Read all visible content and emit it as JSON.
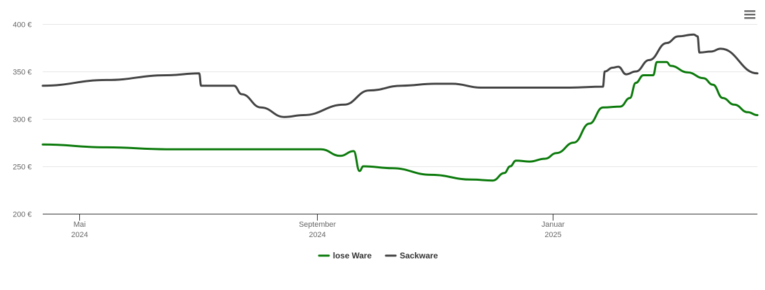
{
  "menu": {
    "icon": "hamburger-menu-icon"
  },
  "chart_data": {
    "type": "line",
    "currency_suffix": " €",
    "ylim": [
      200,
      400
    ],
    "yticks": [
      200,
      250,
      300,
      350,
      400
    ],
    "y_tick_labels": [
      "200 €",
      "250 €",
      "300 €",
      "350 €",
      "400 €"
    ],
    "xlim": [
      "2024-04-12",
      "2025-04-17"
    ],
    "x_ticks": [
      {
        "date": "2024-05-01",
        "month": "Mai",
        "year": "2024"
      },
      {
        "date": "2024-09-01",
        "month": "September",
        "year": "2024"
      },
      {
        "date": "2025-01-01",
        "month": "Januar",
        "year": "2025"
      }
    ],
    "grid": true,
    "legend_position": "bottom-center",
    "series": [
      {
        "name": "lose Ware",
        "color": "#0b7a0b",
        "points": [
          [
            "2024-04-12",
            273
          ],
          [
            "2024-05-15",
            270
          ],
          [
            "2024-06-15",
            268
          ],
          [
            "2024-07-15",
            268
          ],
          [
            "2024-08-15",
            268
          ],
          [
            "2024-09-03",
            268
          ],
          [
            "2024-09-13",
            261
          ],
          [
            "2024-09-20",
            266
          ],
          [
            "2024-09-23",
            245
          ],
          [
            "2024-09-25",
            250
          ],
          [
            "2024-10-10",
            248
          ],
          [
            "2024-10-30",
            241
          ],
          [
            "2024-11-20",
            236
          ],
          [
            "2024-12-01",
            235
          ],
          [
            "2024-12-07",
            243
          ],
          [
            "2024-12-10",
            250
          ],
          [
            "2024-12-13",
            256
          ],
          [
            "2024-12-20",
            255
          ],
          [
            "2024-12-28",
            258
          ],
          [
            "2025-01-03",
            264
          ],
          [
            "2025-01-12",
            275
          ],
          [
            "2025-01-20",
            295
          ],
          [
            "2025-01-27",
            312
          ],
          [
            "2025-02-05",
            313
          ],
          [
            "2025-02-10",
            322
          ],
          [
            "2025-02-13",
            338
          ],
          [
            "2025-02-17",
            346
          ],
          [
            "2025-02-22",
            346
          ],
          [
            "2025-02-24",
            360
          ],
          [
            "2025-03-01",
            360
          ],
          [
            "2025-03-03",
            356
          ],
          [
            "2025-03-12",
            349
          ],
          [
            "2025-03-20",
            343
          ],
          [
            "2025-03-25",
            336
          ],
          [
            "2025-03-30",
            322
          ],
          [
            "2025-04-05",
            315
          ],
          [
            "2025-04-12",
            307
          ],
          [
            "2025-04-17",
            304
          ]
        ]
      },
      {
        "name": "Sackware",
        "color": "#434343",
        "points": [
          [
            "2024-04-12",
            335
          ],
          [
            "2024-05-15",
            341
          ],
          [
            "2024-06-15",
            346
          ],
          [
            "2024-07-02",
            348
          ],
          [
            "2024-07-03",
            335
          ],
          [
            "2024-07-20",
            335
          ],
          [
            "2024-07-24",
            326
          ],
          [
            "2024-08-03",
            312
          ],
          [
            "2024-08-15",
            302
          ],
          [
            "2024-08-25",
            304
          ],
          [
            "2024-09-15",
            315
          ],
          [
            "2024-09-28",
            330
          ],
          [
            "2024-10-15",
            335
          ],
          [
            "2024-11-01",
            337
          ],
          [
            "2024-11-10",
            337
          ],
          [
            "2024-11-25",
            333
          ],
          [
            "2024-12-15",
            333
          ],
          [
            "2025-01-10",
            333
          ],
          [
            "2025-01-27",
            334
          ],
          [
            "2025-01-28",
            350
          ],
          [
            "2025-02-01",
            354
          ],
          [
            "2025-02-04",
            355
          ],
          [
            "2025-02-08",
            347
          ],
          [
            "2025-02-13",
            350
          ],
          [
            "2025-02-20",
            362
          ],
          [
            "2025-03-01",
            380
          ],
          [
            "2025-03-07",
            387
          ],
          [
            "2025-03-15",
            389
          ],
          [
            "2025-03-17",
            387
          ],
          [
            "2025-03-18",
            370
          ],
          [
            "2025-03-24",
            371
          ],
          [
            "2025-03-29",
            374
          ],
          [
            "2025-04-17",
            348
          ]
        ]
      }
    ]
  }
}
